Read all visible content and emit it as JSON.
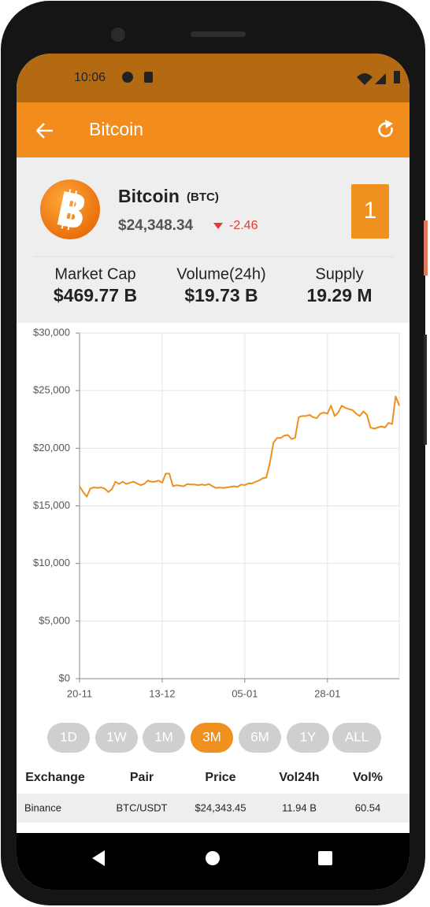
{
  "status_bar": {
    "time": "10:06"
  },
  "app_bar": {
    "title": "Bitcoin"
  },
  "coin": {
    "name": "Bitcoin",
    "symbol": "(BTC)",
    "price": "$24,348.34",
    "change": "-2.46",
    "rank": "1"
  },
  "stats": [
    {
      "label": "Market Cap",
      "value": "$469.77 B"
    },
    {
      "label": "Volume(24h)",
      "value": "$19.73 B"
    },
    {
      "label": "Supply",
      "value": "19.29 M"
    }
  ],
  "chart_data": {
    "type": "line",
    "color": "#ef8f1f",
    "grid": true,
    "x": [
      "20-11",
      "21-11",
      "22-11",
      "23-11",
      "24-11",
      "25-11",
      "26-11",
      "27-11",
      "28-11",
      "29-11",
      "30-11",
      "01-12",
      "02-12",
      "03-12",
      "04-12",
      "05-12",
      "06-12",
      "07-12",
      "08-12",
      "09-12",
      "10-12",
      "11-12",
      "12-12",
      "13-12",
      "14-12",
      "15-12",
      "16-12",
      "17-12",
      "18-12",
      "19-12",
      "20-12",
      "21-12",
      "22-12",
      "23-12",
      "24-12",
      "25-12",
      "26-12",
      "27-12",
      "28-12",
      "29-12",
      "30-12",
      "31-12",
      "01-01",
      "02-01",
      "03-01",
      "04-01",
      "05-01",
      "06-01",
      "07-01",
      "08-01",
      "09-01",
      "10-01",
      "11-01",
      "12-01",
      "13-01",
      "14-01",
      "15-01",
      "16-01",
      "17-01",
      "18-01",
      "19-01",
      "20-01",
      "21-01",
      "22-01",
      "23-01",
      "24-01",
      "25-01",
      "26-01",
      "27-01",
      "28-01",
      "29-01",
      "30-01",
      "31-01",
      "01-02",
      "02-02",
      "03-02",
      "04-02",
      "05-02",
      "06-02",
      "07-02",
      "08-02",
      "09-02",
      "10-02",
      "11-02",
      "12-02",
      "13-02",
      "14-02",
      "15-02",
      "16-02",
      "17-02"
    ],
    "values": [
      16700,
      16200,
      15800,
      16500,
      16600,
      16550,
      16600,
      16500,
      16200,
      16450,
      17100,
      16900,
      17100,
      16900,
      17000,
      17100,
      16950,
      16800,
      16900,
      17200,
      17100,
      17100,
      17200,
      17000,
      17800,
      17800,
      16700,
      16800,
      16750,
      16700,
      16900,
      16850,
      16850,
      16800,
      16850,
      16800,
      16900,
      16700,
      16550,
      16600,
      16550,
      16600,
      16650,
      16700,
      16650,
      16850,
      16800,
      16950,
      16950,
      17100,
      17200,
      17400,
      17450,
      18800,
      20500,
      20900,
      20900,
      21100,
      21150,
      20800,
      20900,
      22700,
      22800,
      22800,
      22900,
      22700,
      22600,
      23000,
      23100,
      23000,
      23700,
      22800,
      23100,
      23700,
      23500,
      23400,
      23300,
      23000,
      22800,
      23200,
      22900,
      21800,
      21700,
      21800,
      21900,
      21800,
      22200,
      22100,
      24500,
      23700
    ],
    "xlim": [
      "20-11",
      "17-02"
    ],
    "xticks": [
      "20-11",
      "13-12",
      "05-01",
      "28-01"
    ],
    "ylim": [
      0,
      30000
    ],
    "yticks": [
      {
        "value": 0,
        "label": "$0"
      },
      {
        "value": 5000,
        "label": "$5,000"
      },
      {
        "value": 10000,
        "label": "$10,000"
      },
      {
        "value": 15000,
        "label": "$15,000"
      },
      {
        "value": 20000,
        "label": "$20,000"
      },
      {
        "value": 25000,
        "label": "$25,000"
      },
      {
        "value": 30000,
        "label": "$30,000"
      }
    ]
  },
  "ranges": {
    "options": [
      "1D",
      "1W",
      "1M",
      "3M",
      "6M",
      "1Y",
      "ALL"
    ],
    "selected": 3
  },
  "table": {
    "header": [
      "Exchange",
      "Pair",
      "Price",
      "Vol24h",
      "Vol%"
    ],
    "rows": [
      [
        "Binance",
        "BTC/USDT",
        "$24,343.45",
        "11.94 B",
        "60.54"
      ]
    ]
  }
}
